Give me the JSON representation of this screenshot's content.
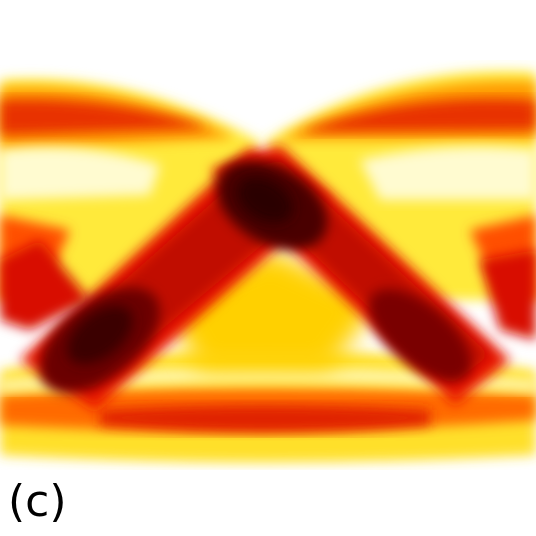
{
  "chart_data": {
    "type": "heatmap",
    "panel_label": "(c)",
    "title": "",
    "xlabel": "",
    "ylabel": "",
    "grid": false,
    "legend": "none",
    "colormap": [
      "#ffffff",
      "#fff9a0",
      "#ffd400",
      "#ff7a00",
      "#e01000",
      "#900000",
      "#3a0000"
    ],
    "features": [
      {
        "name": "upper-left-lobe",
        "intensity": 0.6
      },
      {
        "name": "upper-right-lobe",
        "intensity": 0.6
      },
      {
        "name": "lower-band",
        "intensity": 0.55
      },
      {
        "name": "rising-diagonal-band",
        "intensity": 0.85
      },
      {
        "name": "falling-diagonal-band",
        "intensity": 0.8
      },
      {
        "name": "crossing-peak",
        "intensity": 1.0
      },
      {
        "name": "lower-left-peak",
        "intensity": 0.95
      },
      {
        "name": "lower-right-peak",
        "intensity": 0.85
      }
    ]
  }
}
